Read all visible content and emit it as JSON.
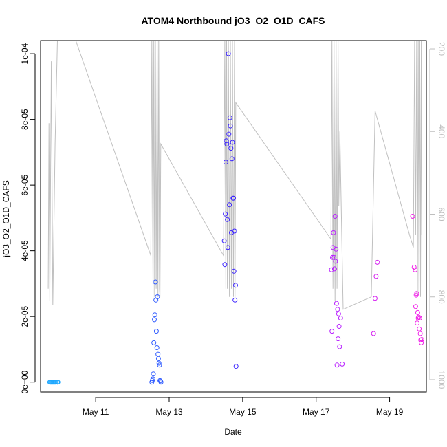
{
  "chart_data": {
    "type": "scatter",
    "title": "ATOM4 Northbound jO3_O2_O1D_CAFS",
    "xlabel": "Date",
    "ylabel": "jO3_O2_O1D_CAFS",
    "xlim": [
      "2018-05-09T12:00",
      "2018-05-20T00:00"
    ],
    "ylim": [
      -3e-06,
      0.000104
    ],
    "y2lim": [
      1030,
      180
    ],
    "y2_reversed": true,
    "x_ticks": [
      {
        "label": "May 11",
        "value": "2018-05-11"
      },
      {
        "label": "May 13",
        "value": "2018-05-13"
      },
      {
        "label": "May 15",
        "value": "2018-05-15"
      },
      {
        "label": "May 17",
        "value": "2018-05-17"
      },
      {
        "label": "May 19",
        "value": "2018-05-19"
      }
    ],
    "y_ticks": [
      {
        "label": "0e+00",
        "value": 0
      },
      {
        "label": "2e-05",
        "value": 2e-05
      },
      {
        "label": "4e-05",
        "value": 4e-05
      },
      {
        "label": "6e-05",
        "value": 6e-05
      },
      {
        "label": "8e-05",
        "value": 8e-05
      },
      {
        "label": "1e-04",
        "value": 0.0001
      }
    ],
    "y2_ticks": [
      {
        "label": "200",
        "value": 200
      },
      {
        "label": "400",
        "value": 400
      },
      {
        "label": "600",
        "value": 600
      },
      {
        "label": "800",
        "value": 800
      },
      {
        "label": "1000",
        "value": 1000
      }
    ],
    "grid": false,
    "colors": {
      "pressure_line": "#c0c0c0",
      "flight_1": "#1ea8ff",
      "flight_2": "#2f5bff",
      "flight_3": "#3a22ff",
      "flight_4": "#b81fff",
      "flight_5": "#d51ff0",
      "flight_6": "#f020e8"
    },
    "series": [
      {
        "color_key": "flight_1",
        "points": [
          [
            "2018-05-09T18:00",
            0.0
          ],
          [
            "2018-05-09T18:30",
            0.0
          ],
          [
            "2018-05-09T19:00",
            0.0
          ],
          [
            "2018-05-09T19:30",
            0.0
          ],
          [
            "2018-05-09T20:00",
            0.0
          ],
          [
            "2018-05-09T20:30",
            0.0
          ],
          [
            "2018-05-09T21:00",
            0.0
          ],
          [
            "2018-05-09T21:30",
            0.0
          ],
          [
            "2018-05-09T22:00",
            0.0
          ],
          [
            "2018-05-09T23:00",
            0.0
          ],
          [
            "2018-05-09T23:20",
            0.0
          ]
        ]
      },
      {
        "color_key": "flight_2",
        "points": [
          [
            "2018-05-12T12:40",
            0.0
          ],
          [
            "2018-05-12T13:00",
            5e-07
          ],
          [
            "2018-05-12T13:20",
            1e-06
          ],
          [
            "2018-05-12T13:40",
            2.5e-06
          ],
          [
            "2018-05-12T14:00",
            1.2e-05
          ],
          [
            "2018-05-12T14:20",
            1.9e-05
          ],
          [
            "2018-05-12T14:40",
            2.05e-05
          ],
          [
            "2018-05-12T15:00",
            3.05e-05
          ],
          [
            "2018-05-12T15:20",
            2.5e-05
          ],
          [
            "2018-05-12T15:40",
            1.55e-05
          ],
          [
            "2018-05-12T16:00",
            1.05e-05
          ],
          [
            "2018-05-12T16:20",
            2.6e-05
          ],
          [
            "2018-05-12T16:40",
            8.5e-06
          ],
          [
            "2018-05-12T17:00",
            7.2e-06
          ],
          [
            "2018-05-12T17:20",
            5.8e-06
          ],
          [
            "2018-05-12T17:40",
            5.2e-06
          ],
          [
            "2018-05-12T18:00",
            5e-07
          ],
          [
            "2018-05-12T18:20",
            3e-07
          ],
          [
            "2018-05-12T18:40",
            0.0
          ]
        ]
      },
      {
        "color_key": "flight_3",
        "points": [
          [
            "2018-05-14T12:00",
            4.3e-05
          ],
          [
            "2018-05-14T12:20",
            3.58e-05
          ],
          [
            "2018-05-14T12:40",
            5.12e-05
          ],
          [
            "2018-05-14T13:00",
            6.7e-05
          ],
          [
            "2018-05-14T13:20",
            7.35e-05
          ],
          [
            "2018-05-14T13:40",
            7.25e-05
          ],
          [
            "2018-05-14T14:00",
            4.95e-05
          ],
          [
            "2018-05-14T14:20",
            4.1e-05
          ],
          [
            "2018-05-14T14:40",
            0.0001
          ],
          [
            "2018-05-14T15:00",
            7.55e-05
          ],
          [
            "2018-05-14T15:20",
            5.4e-05
          ],
          [
            "2018-05-14T15:40",
            8.05e-05
          ],
          [
            "2018-05-14T16:00",
            7.8e-05
          ],
          [
            "2018-05-14T16:20",
            7.12e-05
          ],
          [
            "2018-05-14T16:40",
            4.55e-05
          ],
          [
            "2018-05-14T17:00",
            6.8e-05
          ],
          [
            "2018-05-14T17:20",
            7.3e-05
          ],
          [
            "2018-05-14T17:40",
            5.6e-05
          ],
          [
            "2018-05-14T18:00",
            5.6e-05
          ],
          [
            "2018-05-14T18:20",
            3.38e-05
          ],
          [
            "2018-05-14T18:40",
            4.6e-05
          ],
          [
            "2018-05-14T19:00",
            2.5e-05
          ],
          [
            "2018-05-14T19:20",
            2.95e-05
          ],
          [
            "2018-05-14T19:40",
            4.8e-06
          ]
        ]
      },
      {
        "color_key": "flight_4",
        "points": [
          [
            "2018-05-17T10:00",
            3.42e-05
          ],
          [
            "2018-05-17T10:20",
            1.55e-05
          ],
          [
            "2018-05-17T10:40",
            3.8e-05
          ],
          [
            "2018-05-17T11:00",
            4.1e-05
          ],
          [
            "2018-05-17T11:20",
            4.55e-05
          ],
          [
            "2018-05-17T11:40",
            3.8e-05
          ],
          [
            "2018-05-17T12:00",
            3.45e-05
          ],
          [
            "2018-05-17T12:20",
            5.05e-05
          ],
          [
            "2018-05-17T12:40",
            3.68e-05
          ],
          [
            "2018-05-17T13:00",
            4.05e-05
          ],
          [
            "2018-05-17T13:20",
            2.4e-05
          ],
          [
            "2018-05-17T13:40",
            5.2e-06
          ],
          [
            "2018-05-17T14:00",
            2.22e-05
          ],
          [
            "2018-05-17T14:20",
            1.32e-05
          ],
          [
            "2018-05-17T14:40",
            2.08e-05
          ],
          [
            "2018-05-17T15:00",
            1.7e-05
          ],
          [
            "2018-05-17T15:20",
            1.08e-05
          ],
          [
            "2018-05-17T16:00",
            1.95e-05
          ],
          [
            "2018-05-17T17:00",
            5.5e-06
          ]
        ]
      },
      {
        "color_key": "flight_5",
        "points": [
          [
            "2018-05-18T13:30",
            1.48e-05
          ],
          [
            "2018-05-18T14:30",
            2.55e-05
          ],
          [
            "2018-05-18T15:10",
            3.22e-05
          ],
          [
            "2018-05-18T16:00",
            3.65e-05
          ]
        ]
      },
      {
        "color_key": "flight_6",
        "points": [
          [
            "2018-05-19T15:00",
            5.05e-05
          ],
          [
            "2018-05-19T16:00",
            3.5e-05
          ],
          [
            "2018-05-19T16:40",
            3.42e-05
          ],
          [
            "2018-05-19T17:00",
            2.3e-05
          ],
          [
            "2018-05-19T17:20",
            2.65e-05
          ],
          [
            "2018-05-19T17:40",
            2.7e-05
          ],
          [
            "2018-05-19T18:00",
            1.8e-05
          ],
          [
            "2018-05-19T18:20",
            2.12e-05
          ],
          [
            "2018-05-19T18:40",
            1.95e-05
          ],
          [
            "2018-05-19T19:00",
            1.98e-05
          ],
          [
            "2018-05-19T19:20",
            1.62e-05
          ],
          [
            "2018-05-19T19:40",
            1.95e-05
          ],
          [
            "2018-05-19T20:00",
            1.48e-05
          ],
          [
            "2018-05-19T20:20",
            1.28e-05
          ],
          [
            "2018-05-19T20:40",
            1.2e-05
          ],
          [
            "2018-05-19T21:00",
            1.3e-05
          ]
        ]
      }
    ],
    "pressure_line": [
      [
        "2018-05-09T17:00",
        780
      ],
      [
        "2018-05-09T17:30",
        380
      ],
      [
        "2018-05-09T18:00",
        810
      ],
      [
        "2018-05-09T19:00",
        230
      ],
      [
        "2018-05-09T20:00",
        820
      ],
      [
        "2018-05-09T21:30",
        430
      ],
      [
        "2018-05-09T23:00",
        180
      ],
      [
        "2018-05-10T11:00",
        180
      ],
      [
        "2018-05-12T12:00",
        700
      ],
      [
        "2018-05-12T12:40",
        180
      ],
      [
        "2018-05-12T13:30",
        810
      ],
      [
        "2018-05-12T14:00",
        180
      ],
      [
        "2018-05-12T14:30",
        800
      ],
      [
        "2018-05-12T15:00",
        180
      ],
      [
        "2018-05-12T15:30",
        780
      ],
      [
        "2018-05-12T16:10",
        180
      ],
      [
        "2018-05-12T16:40",
        800
      ],
      [
        "2018-05-12T17:10",
        180
      ],
      [
        "2018-05-12T17:40",
        780
      ],
      [
        "2018-05-12T18:00",
        800
      ],
      [
        "2018-05-12T18:30",
        430
      ],
      [
        "2018-05-14T11:30",
        700
      ],
      [
        "2018-05-14T12:20",
        180
      ],
      [
        "2018-05-14T13:00",
        780
      ],
      [
        "2018-05-14T13:30",
        180
      ],
      [
        "2018-05-14T14:00",
        780
      ],
      [
        "2018-05-14T14:40",
        180
      ],
      [
        "2018-05-14T15:20",
        800
      ],
      [
        "2018-05-14T16:00",
        180
      ],
      [
        "2018-05-14T16:40",
        780
      ],
      [
        "2018-05-14T17:20",
        180
      ],
      [
        "2018-05-14T18:00",
        800
      ],
      [
        "2018-05-14T18:40",
        180
      ],
      [
        "2018-05-14T19:00",
        800
      ],
      [
        "2018-05-14T19:30",
        330
      ],
      [
        "2018-05-17T09:40",
        660
      ],
      [
        "2018-05-17T10:20",
        180
      ],
      [
        "2018-05-17T11:00",
        780
      ],
      [
        "2018-05-17T11:40",
        180
      ],
      [
        "2018-05-17T12:20",
        810
      ],
      [
        "2018-05-17T13:00",
        180
      ],
      [
        "2018-05-17T13:40",
        780
      ],
      [
        "2018-05-17T14:20",
        180
      ],
      [
        "2018-05-17T14:50",
        580
      ],
      [
        "2018-05-17T15:30",
        400
      ],
      [
        "2018-05-17T16:30",
        600
      ],
      [
        "2018-05-17T17:40",
        830
      ],
      [
        "2018-05-18T12:00",
        800
      ],
      [
        "2018-05-18T14:30",
        350
      ],
      [
        "2018-05-19T13:00",
        650
      ],
      [
        "2018-05-19T15:30",
        680
      ],
      [
        "2018-05-19T16:20",
        180
      ],
      [
        "2018-05-19T17:00",
        650
      ],
      [
        "2018-05-19T17:40",
        180
      ],
      [
        "2018-05-19T18:10",
        800
      ],
      [
        "2018-05-19T18:40",
        180
      ],
      [
        "2018-05-19T19:10",
        790
      ],
      [
        "2018-05-19T19:40",
        180
      ],
      [
        "2018-05-19T20:10",
        800
      ],
      [
        "2018-05-19T20:40",
        180
      ],
      [
        "2018-05-19T21:00",
        650
      ]
    ]
  }
}
